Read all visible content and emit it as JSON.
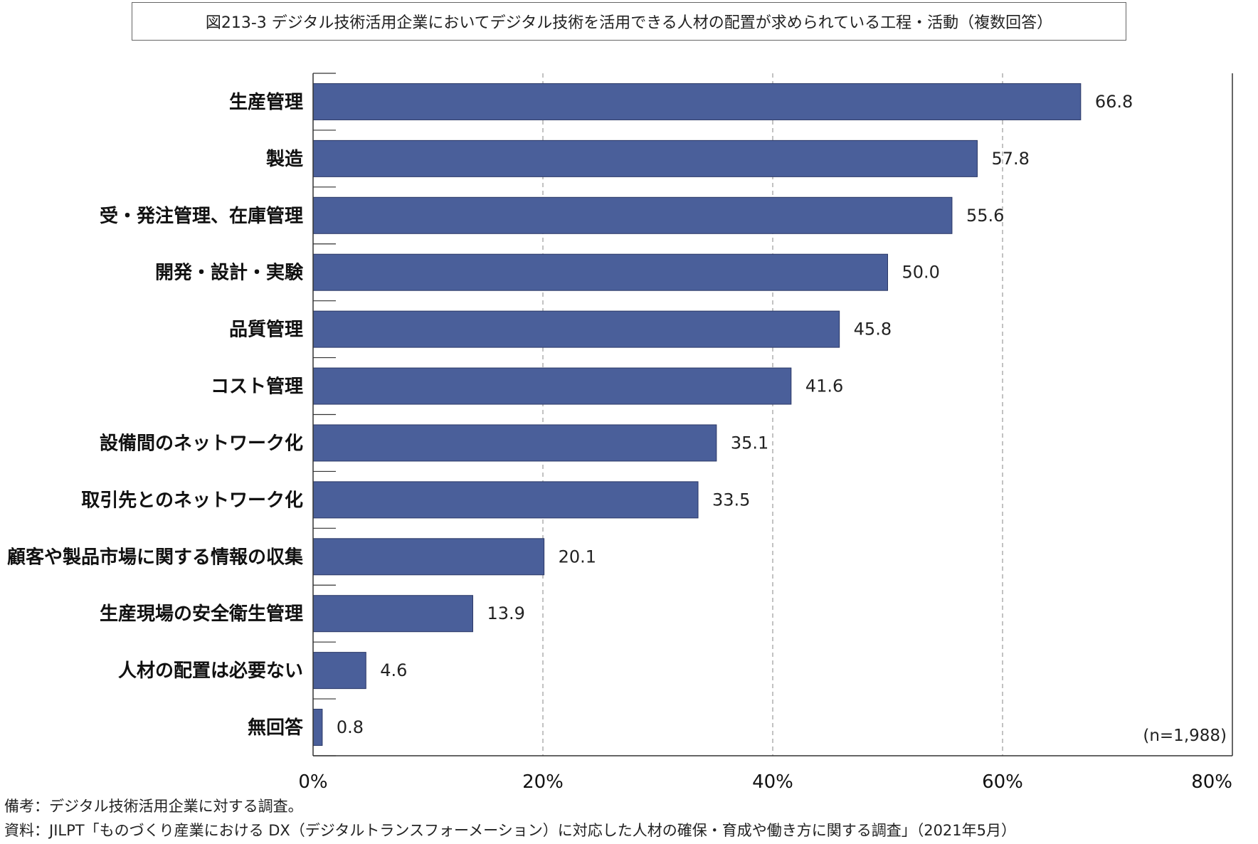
{
  "title": "図213-3 デジタル技術活用企業においてデジタル技術を活用できる人材の配置が求められている工程・活動（複数回答）",
  "sample_note": "(n=1,988)",
  "notes": {
    "remarks": "備考：デジタル技術活用企業に対する調査。",
    "source": "資料：JILPT「ものづくり産業における DX（デジタルトランスフォーメーション）に対応した人材の確保・育成や働き方に関する調査」（2021年5月）"
  },
  "colors": {
    "bar": "#4a5f9a",
    "bar_stroke": "#2b3866",
    "grid": "#999999",
    "axis": "#333333"
  },
  "chart_data": {
    "type": "bar",
    "orientation": "horizontal",
    "categories": [
      "生産管理",
      "製造",
      "受・発注管理、在庫管理",
      "開発・設計・実験",
      "品質管理",
      "コスト管理",
      "設備間のネットワーク化",
      "取引先とのネットワーク化",
      "顧客や製品市場に関する情報の収集",
      "生産現場の安全衛生管理",
      "人材の配置は必要ない",
      "無回答"
    ],
    "values": [
      66.8,
      57.8,
      55.6,
      50.0,
      45.8,
      41.6,
      35.1,
      33.5,
      20.1,
      13.9,
      4.6,
      0.8
    ],
    "value_labels": [
      "66.8",
      "57.8",
      "55.6",
      "50.0",
      "45.8",
      "41.6",
      "35.1",
      "33.5",
      "20.1",
      "13.9",
      "4.6",
      "0.8"
    ],
    "xlim": [
      0,
      80
    ],
    "xticks": [
      0,
      20,
      40,
      60,
      80
    ],
    "xtick_labels": [
      "0%",
      "20%",
      "40%",
      "60%",
      "80%"
    ],
    "grid": "vertical dashed",
    "legend": "none"
  }
}
